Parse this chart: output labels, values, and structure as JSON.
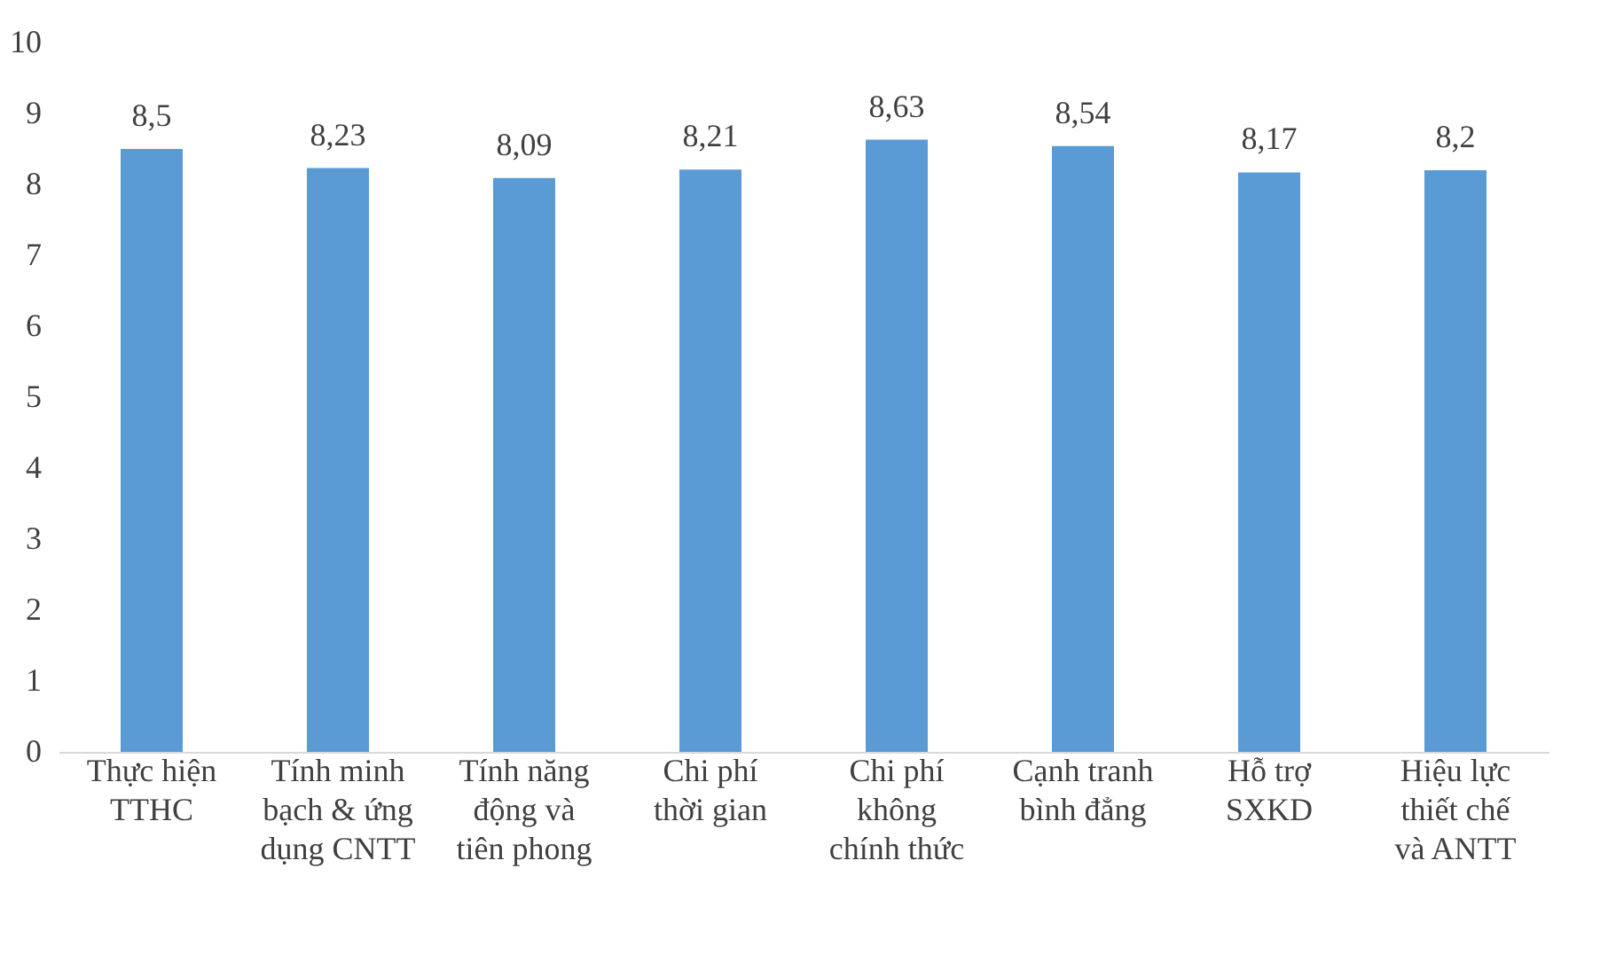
{
  "chart_data": {
    "type": "bar",
    "categories": [
      "Thực hiện TTHC",
      "Tính minh bạch & ứng dụng CNTT",
      "Tính năng động và tiên phong",
      "Chi phí thời gian",
      "Chi phí không chính thức",
      "Cạnh tranh bình đẳng",
      "Hỗ trợ SXKD",
      "Hiệu lực thiết chế và ANTT"
    ],
    "values": [
      8.5,
      8.23,
      8.09,
      8.21,
      8.63,
      8.54,
      8.17,
      8.2
    ],
    "value_labels": [
      "8,5",
      "8,23",
      "8,09",
      "8,21",
      "8,63",
      "8,54",
      "8,17",
      "8,2"
    ],
    "color": "#5b9bd5",
    "ylim": [
      0,
      10
    ],
    "yticks": [
      0,
      1,
      2,
      3,
      4,
      5,
      6,
      7,
      8,
      9,
      10
    ],
    "grid": false
  }
}
